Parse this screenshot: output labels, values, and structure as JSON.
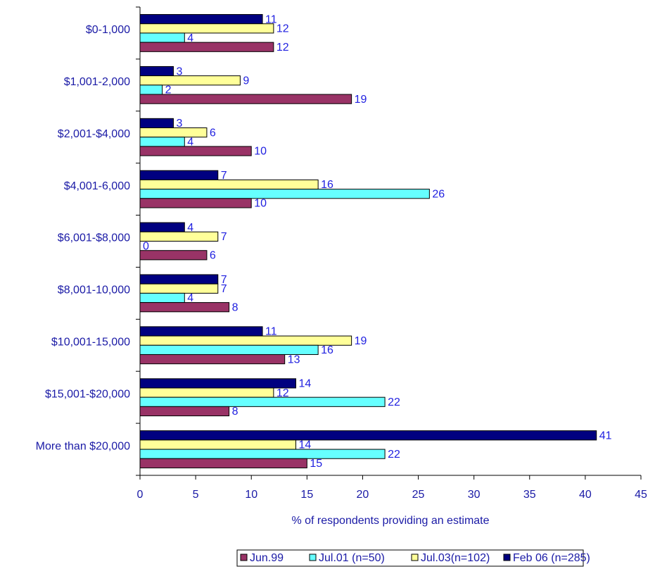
{
  "chart_data": {
    "type": "bar",
    "orientation": "horizontal",
    "x_label": "% of respondents providing an estimate",
    "categories": [
      "$0-1,000",
      "$1,001-2,000",
      "$2,001-$4,000",
      "$4,001-6,000",
      "$6,001-$8,000",
      "$8,001-10,000",
      "$10,001-15,000",
      "$15,001-$20,000",
      "More than $20,000"
    ],
    "series": [
      {
        "name": "Jun.99",
        "color": "#993366",
        "values": [
          12,
          19,
          10,
          10,
          6,
          8,
          13,
          8,
          15
        ]
      },
      {
        "name": "Jul.01 (n=50)",
        "color": "#66ffff",
        "values": [
          4,
          2,
          4,
          26,
          0,
          4,
          16,
          22,
          22
        ]
      },
      {
        "name": "Jul.03(n=102)",
        "color": "#ffff99",
        "values": [
          12,
          9,
          6,
          16,
          7,
          7,
          19,
          12,
          14
        ]
      },
      {
        "name": "Feb 06 (n=285)",
        "color": "#000080",
        "values": [
          11,
          3,
          3,
          7,
          4,
          7,
          11,
          14,
          41
        ]
      }
    ],
    "xlim": [
      0,
      45
    ],
    "xticks": [
      0,
      5,
      10,
      15,
      20,
      25,
      30,
      35,
      40,
      45
    ],
    "legend": "bottom"
  }
}
